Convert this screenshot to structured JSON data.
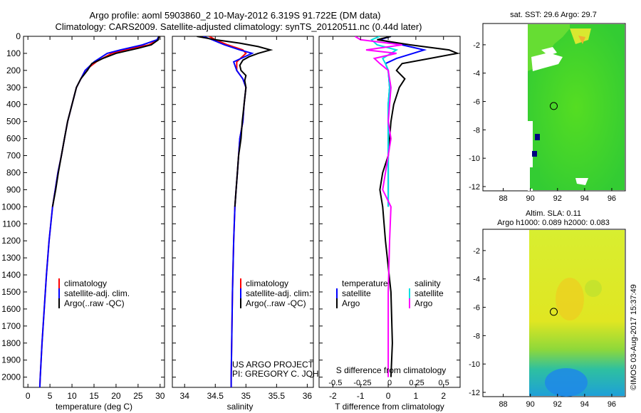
{
  "title_line1": "Argo profile: aoml 5903860_2 10-May-2012 6.319S 91.722E (DM data)",
  "title_line2": "Climatology: CARS2009. Satellite-adjusted climatology: synTS_20120511.nc (0.44d later)",
  "side_label": "©IMOS 03-Aug-2017 15:37:49",
  "project_line1": "US ARGO PROJECT",
  "project_line2": "PI: GREGORY C. JOHNSON",
  "chart_data": [
    {
      "id": "temperature",
      "type": "line",
      "xlabel": "temperature (deg C)",
      "ylabel": "",
      "xlim": [
        -1,
        31
      ],
      "ylim": [
        2060,
        0
      ],
      "xticks": [
        0,
        5,
        10,
        15,
        20,
        25,
        30
      ],
      "yticks": [
        0,
        100,
        200,
        300,
        400,
        500,
        600,
        700,
        800,
        900,
        1000,
        1100,
        1200,
        1300,
        1400,
        1500,
        1600,
        1700,
        1800,
        1900,
        2000
      ],
      "legend": [
        "climatology",
        "satellite-adj. clim.",
        "Argo(..raw -QC)"
      ],
      "series": [
        {
          "name": "climatology",
          "color": "#ff0000",
          "depth": [
            0,
            20,
            50,
            80,
            100,
            150,
            200,
            300,
            400,
            500,
            600,
            700,
            800,
            900,
            1000,
            1200,
            1400,
            1600,
            1800,
            2000,
            2060
          ],
          "values": [
            29.8,
            29.5,
            27.5,
            22,
            19,
            15.5,
            13,
            11,
            10,
            9,
            8.3,
            7.6,
            6.8,
            6.2,
            5.6,
            4.8,
            4.2,
            3.7,
            3.2,
            2.8,
            2.7
          ]
        },
        {
          "name": "satellite-adj. clim.",
          "color": "#0000ff",
          "depth": [
            0,
            20,
            50,
            80,
            100,
            150,
            200,
            300,
            400,
            500,
            600,
            700,
            800,
            900,
            1000,
            1200,
            1400,
            1600,
            1800,
            2000,
            2060
          ],
          "values": [
            29.7,
            29.3,
            26,
            21,
            18,
            15,
            13,
            11,
            10,
            9,
            8.3,
            7.6,
            6.8,
            6.2,
            5.6,
            4.8,
            4.2,
            3.7,
            3.2,
            2.8,
            2.7
          ]
        },
        {
          "name": "Argo(..raw -QC)",
          "color": "#000000",
          "depth": [
            0,
            20,
            50,
            70,
            100,
            130,
            160,
            200,
            250,
            300,
            400,
            500,
            600,
            700,
            800,
            900,
            1000
          ],
          "values": [
            29.7,
            29.6,
            28,
            25,
            20,
            17,
            14.5,
            13.5,
            12,
            11,
            10,
            9,
            8.3,
            7.6,
            6.9,
            6.3,
            5.6
          ]
        }
      ]
    },
    {
      "id": "salinity",
      "type": "line",
      "xlabel": "salinity",
      "ylabel": "",
      "xlim": [
        33.8,
        36.1
      ],
      "ylim": [
        2060,
        0
      ],
      "xticks": [
        34,
        34.5,
        35,
        35.5,
        36
      ],
      "legend": [
        "climatology",
        "satellite-adj. clim.",
        "Argo(..raw -QC)"
      ],
      "series": [
        {
          "name": "climatology",
          "color": "#ff0000",
          "depth": [
            0,
            20,
            50,
            80,
            100,
            150,
            200,
            250,
            300,
            400,
            500,
            600,
            700,
            800,
            900,
            1000,
            1200,
            1500,
            2000,
            2060
          ],
          "values": [
            34.4,
            34.5,
            34.7,
            34.95,
            35.0,
            34.85,
            34.85,
            34.95,
            35.0,
            34.97,
            34.95,
            34.9,
            34.88,
            34.86,
            34.84,
            34.82,
            34.8,
            34.78,
            34.76,
            34.76
          ]
        },
        {
          "name": "satellite-adj. clim.",
          "color": "#0000ff",
          "depth": [
            0,
            20,
            50,
            80,
            100,
            150,
            200,
            250,
            300,
            400,
            500,
            600,
            700,
            800,
            900,
            1000,
            1200,
            1500,
            2000,
            2060
          ],
          "values": [
            34.3,
            34.45,
            34.65,
            34.9,
            35.1,
            34.8,
            34.85,
            34.95,
            35.0,
            34.97,
            34.95,
            34.9,
            34.88,
            34.86,
            34.84,
            34.82,
            34.8,
            34.78,
            34.76,
            34.76
          ]
        },
        {
          "name": "Argo(..raw -QC)",
          "color": "#000000",
          "depth": [
            0,
            20,
            40,
            60,
            80,
            100,
            120,
            140,
            170,
            200,
            230,
            260,
            300,
            400,
            500,
            600,
            700,
            800,
            900,
            1000
          ],
          "values": [
            34.2,
            34.5,
            34.9,
            35.2,
            35.4,
            35.2,
            35.05,
            34.95,
            34.9,
            34.92,
            35.0,
            34.98,
            35.0,
            34.97,
            34.94,
            34.92,
            34.88,
            34.86,
            34.84,
            34.82
          ]
        }
      ]
    },
    {
      "id": "difference",
      "type": "line",
      "xlabel": "T difference from climatology",
      "xlabel_top": "S difference from climatology",
      "xlim": [
        -2.5,
        2.6
      ],
      "ylim": [
        2060,
        0
      ],
      "xticks": [
        -2,
        -1,
        0,
        1,
        2
      ],
      "sticks": [
        -0.5,
        -0.25,
        0,
        0.25,
        0.5
      ],
      "legend_temp_title": "temperature",
      "legend_sal_title": "salinity",
      "legend_temp": [
        "satellite",
        "Argo"
      ],
      "legend_sal": [
        "satellite",
        "Argo"
      ],
      "series": [
        {
          "name": "T satellite",
          "color": "#0000ff",
          "depth": [
            0,
            20,
            50,
            80,
            100,
            130,
            160,
            200,
            300,
            400,
            500,
            600,
            800,
            1000
          ],
          "values": [
            0.1,
            -0.3,
            0.5,
            1.3,
            0.9,
            0.3,
            -0.1,
            0,
            0.05,
            0,
            0,
            0,
            0,
            0
          ]
        },
        {
          "name": "T Argo",
          "color": "#000000",
          "depth": [
            0,
            20,
            50,
            80,
            100,
            130,
            160,
            200,
            250,
            300,
            400,
            500,
            600,
            700,
            800,
            900,
            1000,
            1200,
            1500,
            1800,
            2000
          ],
          "values": [
            0.1,
            -0.4,
            0.8,
            2.2,
            2.5,
            1.5,
            0.5,
            0.3,
            0.6,
            0.4,
            0.2,
            0.1,
            0.05,
            0.0,
            -0.2,
            -0.3,
            -0.2,
            -0.1,
            0.1,
            0.15,
            0.1
          ]
        },
        {
          "name": "S satellite",
          "color": "#00e0e0",
          "depth": [
            0,
            20,
            50,
            80,
            100,
            130,
            160,
            200,
            300,
            400,
            500,
            600,
            800,
            1000
          ],
          "values": [
            -0.3,
            -0.6,
            -0.4,
            0.3,
            0.1,
            -0.2,
            -0.1,
            0,
            0.05,
            0,
            0,
            0,
            0,
            0
          ]
        },
        {
          "name": "S Argo",
          "color": "#ff00ff",
          "depth": [
            0,
            20,
            50,
            80,
            100,
            130,
            160,
            200,
            300,
            400,
            500,
            600,
            800,
            900,
            1000,
            1200,
            1500,
            2000
          ],
          "values": [
            -1.2,
            -1.0,
            0.5,
            -0.8,
            0.3,
            -0.5,
            -0.3,
            0,
            0.1,
            0.05,
            0,
            0.1,
            -0.1,
            -0.2,
            0.1,
            0.05,
            0,
            0
          ]
        }
      ]
    },
    {
      "id": "sst_map",
      "type": "heatmap",
      "title": "sat. SST: 29.6  Argo: 29.7",
      "xlim": [
        86.5,
        97
      ],
      "ylim": [
        -12.3,
        -0.5
      ],
      "xticks": [
        88,
        90,
        92,
        94,
        96
      ],
      "yticks": [
        -2,
        -4,
        -6,
        -8,
        -10,
        -12
      ],
      "marker": {
        "lon": 91.722,
        "lat": -6.319
      }
    },
    {
      "id": "sla_map",
      "type": "heatmap",
      "title_line1": "Altim. SLA: 0.11",
      "title_line2": "Argo h1000: 0.089 h2000: 0.083",
      "xlim": [
        86.5,
        97
      ],
      "ylim": [
        -12.3,
        -0.5
      ],
      "xticks": [
        88,
        90,
        92,
        94,
        96
      ],
      "yticks": [
        -2,
        -4,
        -6,
        -8,
        -10,
        -12
      ],
      "marker": {
        "lon": 91.722,
        "lat": -6.319
      }
    }
  ]
}
